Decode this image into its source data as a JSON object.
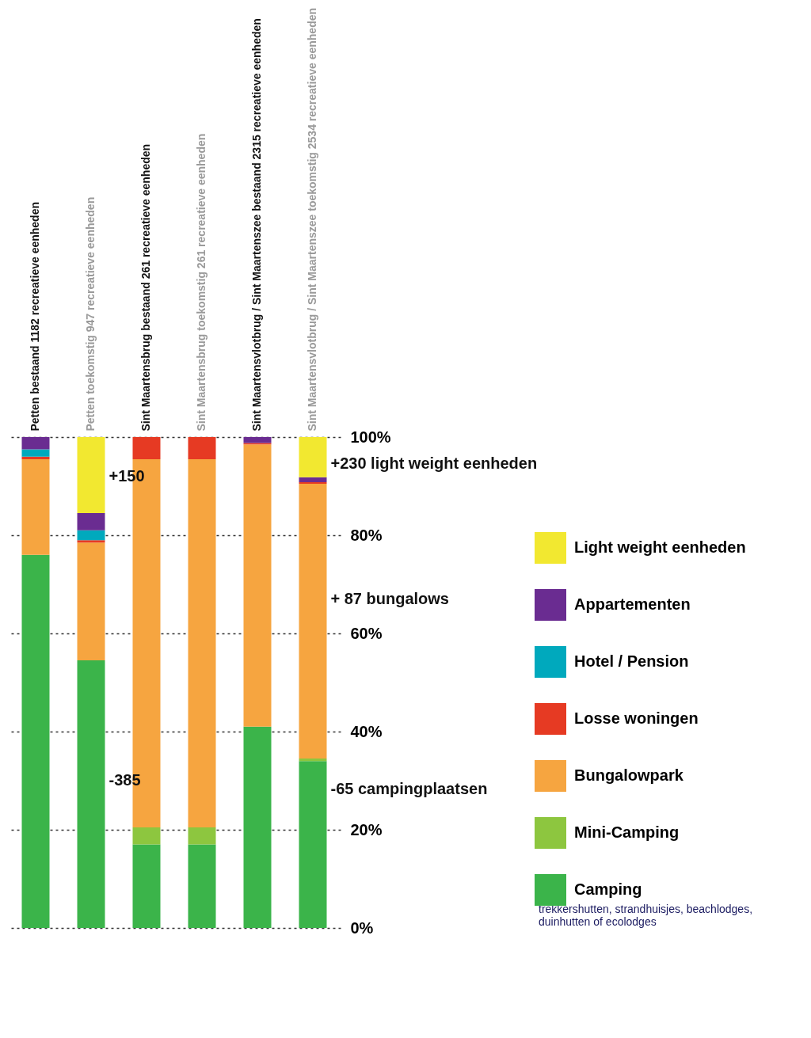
{
  "chart_data": {
    "type": "bar",
    "stacked": true,
    "categories": [
      "Petten bestaand  1182 recreatieve eenheden",
      "Petten toekomstig 947  recreatieve eenheden",
      "Sint Maartensbrug bestaand 261 recreatieve eenheden",
      "Sint Maartensbrug toekomstig 261 recreatieve eenheden",
      "Sint Maartensvlotbrug / Sint Maartenszee bestaand  2315 recreatieve eenheden",
      "Sint Maartensvlotbrug / Sint Maartenszee toekomstig  2534 recreatieve eenheden"
    ],
    "series": [
      {
        "name": "Camping",
        "color": "#3bb44a",
        "values": [
          76,
          54.5,
          17,
          17,
          41,
          34
        ]
      },
      {
        "name": "Mini-Camping",
        "color": "#8dc63f",
        "values": [
          null,
          null,
          3.5,
          3.5,
          null,
          0.5
        ]
      },
      {
        "name": "Bungalowpark",
        "color": "#f6a540",
        "values": [
          19.5,
          24,
          75,
          75,
          57.5,
          56
        ]
      },
      {
        "name": "Losse woningen",
        "color": "#e63a23",
        "values": [
          0.5,
          0.5,
          4.5,
          4.5,
          0.3,
          0.3
        ]
      },
      {
        "name": "Hotel / Pension",
        "color": "#00a9bd",
        "values": [
          1.5,
          2,
          null,
          null,
          null,
          null
        ]
      },
      {
        "name": "Appartementen",
        "color": "#6a2c91",
        "values": [
          2.5,
          3.5,
          null,
          null,
          1.2,
          1
        ]
      },
      {
        "name": "Light weight eenheden",
        "color": "#f2e830",
        "values": [
          null,
          15.5,
          null,
          null,
          null,
          8.2
        ]
      }
    ],
    "ylim": [
      0,
      100
    ],
    "yticks": [
      {
        "value": 0,
        "label": "0%"
      },
      {
        "value": 20,
        "label": "20%"
      },
      {
        "value": 40,
        "label": "40%"
      },
      {
        "value": 60,
        "label": "60%"
      },
      {
        "value": 80,
        "label": "80%"
      },
      {
        "value": 100,
        "label": "100%"
      }
    ],
    "grid": "y",
    "legend": "right",
    "annotations": [
      "+150",
      "-385",
      "+230 light weight eenheden",
      "+ 87 bungalows",
      "-65 campingplaatsen",
      "trekkershutten, strandhuisjes, beachlodges, duinhutten of ecolodges"
    ]
  }
}
